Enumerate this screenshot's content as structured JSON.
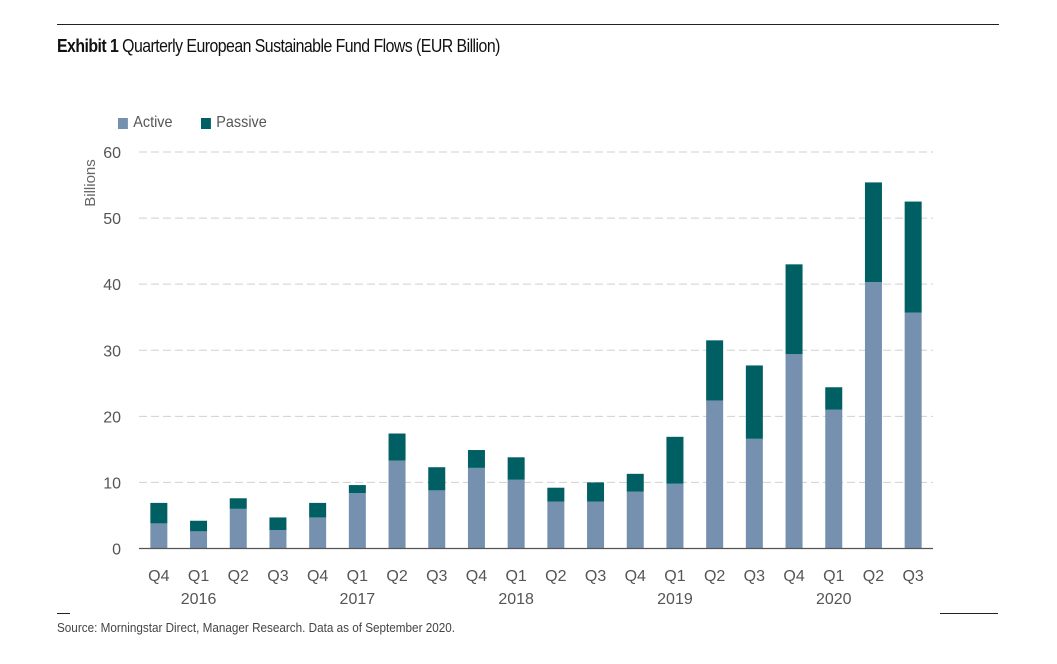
{
  "exhibit": {
    "label": "Exhibit 1",
    "title": "Quarterly European Sustainable Fund Flows (EUR Billion)"
  },
  "source": "Source: Morningstar Direct, Manager Research. Data as of September 2020.",
  "chart_data": {
    "type": "bar",
    "stacked": true,
    "title": "Quarterly European Sustainable Fund Flows (EUR Billion)",
    "xlabel": "",
    "ylabel": "Billions",
    "ylim": [
      0,
      60
    ],
    "yticks": [
      0,
      10,
      20,
      30,
      40,
      50,
      60
    ],
    "grid": true,
    "legend_position": "top-left",
    "categories": [
      "Q4",
      "Q1",
      "Q2",
      "Q3",
      "Q4",
      "Q1",
      "Q2",
      "Q3",
      "Q4",
      "Q1",
      "Q2",
      "Q3",
      "Q4",
      "Q1",
      "Q2",
      "Q3",
      "Q4",
      "Q1",
      "Q2",
      "Q3"
    ],
    "year_labels": [
      {
        "label": "2016",
        "category_index": 1
      },
      {
        "label": "2017",
        "category_index": 5
      },
      {
        "label": "2018",
        "category_index": 9
      },
      {
        "label": "2019",
        "category_index": 13
      },
      {
        "label": "2020",
        "category_index": 17
      }
    ],
    "series": [
      {
        "name": "Active",
        "color": "#7690B0",
        "values": [
          3.8,
          2.6,
          6.0,
          2.8,
          4.7,
          8.4,
          13.3,
          8.8,
          12.2,
          10.4,
          7.1,
          7.1,
          8.6,
          9.8,
          22.4,
          16.6,
          29.4,
          21.0,
          40.3,
          35.7
        ]
      },
      {
        "name": "Passive",
        "color": "#005F63",
        "values": [
          3.1,
          1.6,
          1.6,
          1.9,
          2.2,
          1.2,
          4.1,
          3.5,
          2.7,
          3.4,
          2.1,
          2.9,
          2.7,
          7.1,
          9.1,
          11.1,
          13.6,
          3.4,
          15.1,
          16.8
        ]
      }
    ]
  }
}
